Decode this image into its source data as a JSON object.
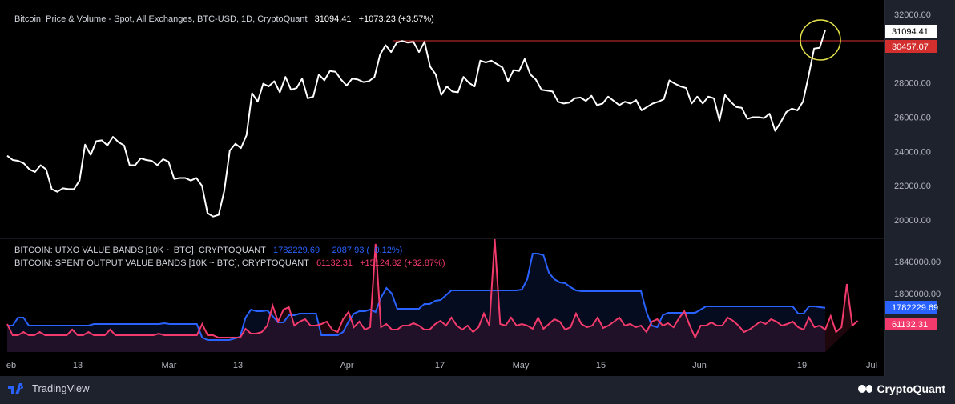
{
  "legend_top": {
    "title": "Bitcoin: Price & Volume - Spot, All Exchanges, BTC-USD, 1D, CryptoQuant",
    "value": "31094.41",
    "change": "+1073.23 (+3.57%)"
  },
  "legend_bottom": {
    "utxo": {
      "title": "BITCOIN: UTXO VALUE BANDS [10K ~ BTC], CRYPTOQUANT",
      "value": "1782229.69",
      "change": "−2087.93 (−0.12%)"
    },
    "spent": {
      "title": "BITCOIN: SPENT OUTPUT VALUE BANDS [10K ~ BTC], CRYPTOQUANT",
      "value": "61132.31",
      "change": "+15124.82 (+32.87%)"
    }
  },
  "footer": {
    "tradingview": "TradingView",
    "cryptoquant": "CryptoQuant"
  },
  "colors": {
    "background": "#000000",
    "chrome": "#1e222d",
    "price": "#ffffff",
    "resistance": "#d32f2f",
    "highlight": "#e6e34a",
    "utxo": "#2962ff",
    "spent": "#f23b6c",
    "axis_text": "#b2b5be"
  },
  "chart_data": [
    {
      "type": "line",
      "x_ticks": [
        "eb",
        "13",
        "Mar",
        "13",
        "Apr",
        "17",
        "May",
        "15",
        "Jun",
        "19",
        "Jul"
      ],
      "ylim": [
        19000,
        32500
      ],
      "y_ticks": [
        "32000.00",
        "30000.00",
        "28000.00",
        "26000.00",
        "24000.00",
        "22000.00",
        "20000.00"
      ],
      "series": [
        {
          "name": "Bitcoin: Price & Volume - Spot, All Exchanges, BTC-USD, 1D, CryptoQuant",
          "values": [
            23750,
            23500,
            23450,
            23300,
            22950,
            22800,
            23200,
            22950,
            21800,
            21650,
            21850,
            21800,
            21800,
            22300,
            24400,
            23800,
            24600,
            24650,
            24350,
            24850,
            24550,
            24350,
            23200,
            23200,
            23600,
            23500,
            23450,
            23200,
            23550,
            23400,
            22400,
            22450,
            22450,
            22300,
            22450,
            22000,
            20400,
            20200,
            20300,
            21700,
            24050,
            24450,
            24200,
            24950,
            27400,
            26900,
            27950,
            27800,
            28100,
            27450,
            28350,
            27600,
            27700,
            28250,
            27100,
            27200,
            28500,
            28150,
            28700,
            28650,
            28200,
            27850,
            28250,
            28200,
            28050,
            28100,
            28350,
            29650,
            30200,
            29800,
            30350,
            30450,
            30350,
            30400,
            29800,
            30400,
            28950,
            28500,
            27300,
            27800,
            27500,
            27450,
            28350,
            28000,
            27800,
            29300,
            29200,
            29300,
            29100,
            28900,
            28100,
            28750,
            28700,
            29400,
            28500,
            28200,
            27600,
            27550,
            27500,
            26900,
            26800,
            26850,
            27100,
            27150,
            26950,
            27250,
            26700,
            26800,
            27200,
            26950,
            26700,
            26900,
            26800,
            27000,
            26400,
            26600,
            26800,
            26900,
            27050,
            28150,
            27950,
            27800,
            27700,
            26800,
            27200,
            26800,
            27200,
            27100,
            25800,
            27300,
            26900,
            26600,
            26550,
            25900,
            26000,
            26000,
            25950,
            26200,
            25200,
            25700,
            26300,
            26500,
            26400,
            26900,
            28400,
            30000,
            30050,
            31094.41
          ]
        }
      ],
      "annotations": [
        {
          "type": "horizontal_line",
          "value": 30457.07,
          "label": "30457.07"
        },
        {
          "type": "last_value",
          "value": 31094.41,
          "label": "31094.41"
        }
      ]
    },
    {
      "type": "line",
      "x_ticks": [
        "eb",
        "13",
        "Mar",
        "13",
        "Apr",
        "17",
        "May",
        "15",
        "Jun",
        "19",
        "Jul"
      ],
      "y_ticks": [
        "1840000.00",
        "1800000.00"
      ],
      "series": [
        {
          "name": "BITCOIN: UTXO VALUE BANDS [10K ~ BTC], CRYPTOQUANT",
          "value_label": "1782229.69",
          "values": [
            1760000,
            1760000,
            1770000,
            1770000,
            1760000,
            1760000,
            1760000,
            1760000,
            1760000,
            1760000,
            1760000,
            1760000,
            1760000,
            1760000,
            1760000,
            1760000,
            1762000,
            1762000,
            1762000,
            1762000,
            1762000,
            1762000,
            1762000,
            1762000,
            1762000,
            1762000,
            1762000,
            1762000,
            1762000,
            1763000,
            1762000,
            1762000,
            1762000,
            1762000,
            1762000,
            1762000,
            1745000,
            1742000,
            1742000,
            1742000,
            1742000,
            1742000,
            1744000,
            1746000,
            1770000,
            1780000,
            1778000,
            1778000,
            1779000,
            1772000,
            1764000,
            1764000,
            1773000,
            1773000,
            1775000,
            1775000,
            1775000,
            1775000,
            1748000,
            1748000,
            1748000,
            1748000,
            1752000,
            1765000,
            1775000,
            1778000,
            1778000,
            1780000,
            1777000,
            1795000,
            1807000,
            1800000,
            1781000,
            1781000,
            1781000,
            1781000,
            1781000,
            1787000,
            1787000,
            1791000,
            1792000,
            1798000,
            1804000,
            1804000,
            1804000,
            1804000,
            1804000,
            1804000,
            1804000,
            1804000,
            1804000,
            1804000,
            1804000,
            1804000,
            1804000,
            1805000,
            1818000,
            1850000,
            1850000,
            1848000,
            1826000,
            1818000,
            1814000,
            1813000,
            1808000,
            1804000,
            1803000,
            1803000,
            1803000,
            1803000,
            1803000,
            1803000,
            1803000,
            1803000,
            1803000,
            1803000,
            1803000,
            1803000,
            1777000,
            1760000,
            1758000,
            1773000,
            1776000,
            1776000,
            1776000,
            1776000,
            1776000,
            1776000,
            1780000,
            1784000,
            1784000,
            1784000,
            1784000,
            1784000,
            1784000,
            1784000,
            1784000,
            1784000,
            1784000,
            1784000,
            1784000,
            1784000,
            1784000,
            1784000,
            1784000,
            1784000,
            1775000,
            1775000,
            1784000,
            1784000,
            1783000,
            1782229.69
          ]
        },
        {
          "name": "BITCOIN: SPENT OUTPUT VALUE BANDS [10K ~ BTC], CRYPTOQUANT",
          "value_label": "61132.31",
          "values": [
            1762000,
            1748000,
            1748000,
            1752000,
            1748000,
            1748000,
            1752000,
            1748000,
            1748000,
            1748000,
            1748000,
            1748000,
            1755000,
            1748000,
            1748000,
            1752000,
            1748000,
            1748000,
            1748000,
            1755000,
            1748000,
            1748000,
            1748000,
            1748000,
            1748000,
            1748000,
            1748000,
            1748000,
            1750000,
            1748000,
            1748000,
            1748000,
            1748000,
            1748000,
            1748000,
            1748000,
            1762000,
            1748000,
            1748000,
            1745000,
            1745000,
            1745000,
            1745000,
            1745000,
            1756000,
            1750000,
            1750000,
            1752000,
            1760000,
            1785000,
            1765000,
            1780000,
            1783000,
            1760000,
            1765000,
            1768000,
            1760000,
            1760000,
            1762000,
            1765000,
            1755000,
            1752000,
            1768000,
            1777000,
            1758000,
            1765000,
            1755000,
            1758000,
            1862000,
            1758000,
            1762000,
            1755000,
            1755000,
            1760000,
            1760000,
            1763000,
            1760000,
            1755000,
            1755000,
            1762000,
            1766000,
            1760000,
            1770000,
            1760000,
            1755000,
            1760000,
            1752000,
            1758000,
            1775000,
            1760000,
            1868000,
            1762000,
            1760000,
            1770000,
            1760000,
            1762000,
            1760000,
            1756000,
            1770000,
            1756000,
            1762000,
            1768000,
            1765000,
            1755000,
            1758000,
            1775000,
            1762000,
            1758000,
            1760000,
            1770000,
            1757000,
            1760000,
            1765000,
            1770000,
            1760000,
            1762000,
            1758000,
            1760000,
            1752000,
            1765000,
            1768000,
            1760000,
            1763000,
            1758000,
            1769000,
            1778000,
            1760000,
            1745000,
            1760000,
            1760000,
            1764000,
            1760000,
            1760000,
            1770000,
            1766000,
            1760000,
            1752000,
            1755000,
            1760000,
            1765000,
            1762000,
            1768000,
            1765000,
            1760000,
            1762000,
            1765000,
            1758000,
            1755000,
            1770000,
            1758000,
            1760000,
            1755000,
            1772000,
            1752000,
            1758000,
            1812000,
            1760000,
            1766000
          ]
        }
      ]
    }
  ],
  "axis_labels": {
    "price_last": "31094.41",
    "price_line": "30457.07",
    "utxo_last": "1782229.69",
    "spent_last": "61132.31"
  }
}
